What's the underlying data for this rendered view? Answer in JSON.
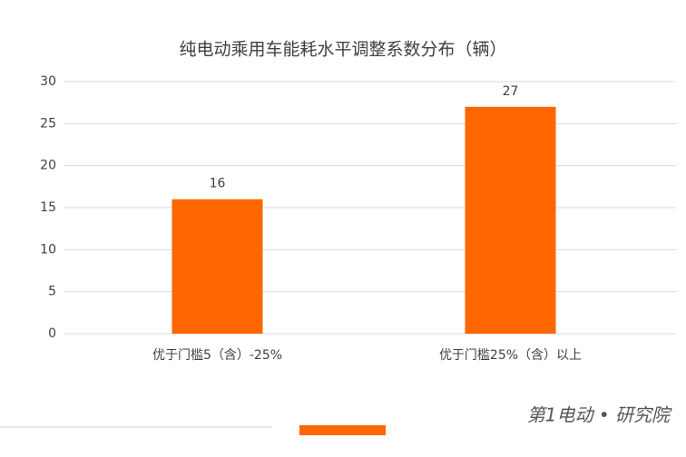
{
  "chart_data": {
    "type": "bar",
    "title": "纯电动乘用车能耗水平调整系数分布（辆）",
    "categories": [
      "优于门槛5（含）-25%",
      "优于门槛25%（含）以上"
    ],
    "values": [
      16,
      27
    ],
    "color": "#ff6600",
    "ylim": [
      0,
      30
    ],
    "yticks": [
      0,
      5,
      10,
      15,
      20,
      25,
      30
    ],
    "grid": true
  },
  "branding": {
    "logo": "第1电动 • 研究院"
  }
}
